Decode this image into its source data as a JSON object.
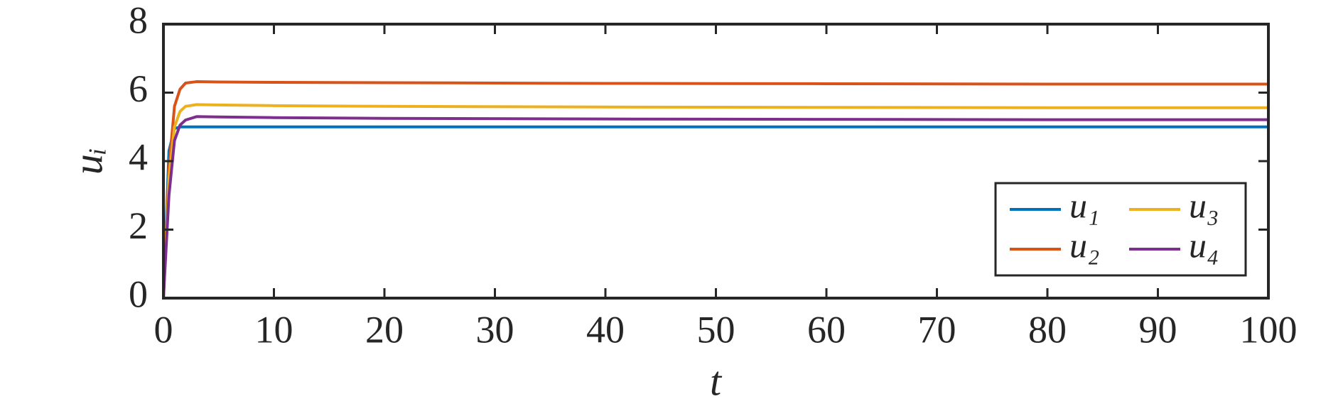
{
  "chart_data": {
    "type": "line",
    "xlabel": "t",
    "ylabel": "uᵢ",
    "x": [
      0,
      0.5,
      1,
      1.5,
      2,
      3,
      5,
      10,
      20,
      40,
      60,
      80,
      100
    ],
    "series": [
      {
        "name": "u₁",
        "color": "#0072bd",
        "values": [
          0,
          4.3,
          4.95,
          5.0,
          5.0,
          5.0,
          5.0,
          5.0,
          5.0,
          5.0,
          5.0,
          5.0,
          5.0
        ]
      },
      {
        "name": "u₂",
        "color": "#d95319",
        "values": [
          0,
          3.8,
          5.6,
          6.1,
          6.28,
          6.32,
          6.31,
          6.3,
          6.29,
          6.27,
          6.26,
          6.25,
          6.25
        ]
      },
      {
        "name": "u₃",
        "color": "#edb120",
        "values": [
          0,
          3.5,
          5.0,
          5.45,
          5.6,
          5.65,
          5.64,
          5.62,
          5.6,
          5.58,
          5.57,
          5.56,
          5.56
        ]
      },
      {
        "name": "u₄",
        "color": "#7e2f8e",
        "values": [
          0,
          3.0,
          4.6,
          5.05,
          5.2,
          5.3,
          5.29,
          5.27,
          5.25,
          5.23,
          5.22,
          5.21,
          5.21
        ]
      }
    ],
    "xlim": [
      0,
      100
    ],
    "xticks": [
      0,
      10,
      20,
      30,
      40,
      50,
      60,
      70,
      80,
      90,
      100
    ],
    "ylim": [
      0,
      8
    ],
    "yticks": [
      0,
      2,
      4,
      6,
      8
    ],
    "grid": false,
    "legend": "lower right",
    "legend_columns": 2
  }
}
